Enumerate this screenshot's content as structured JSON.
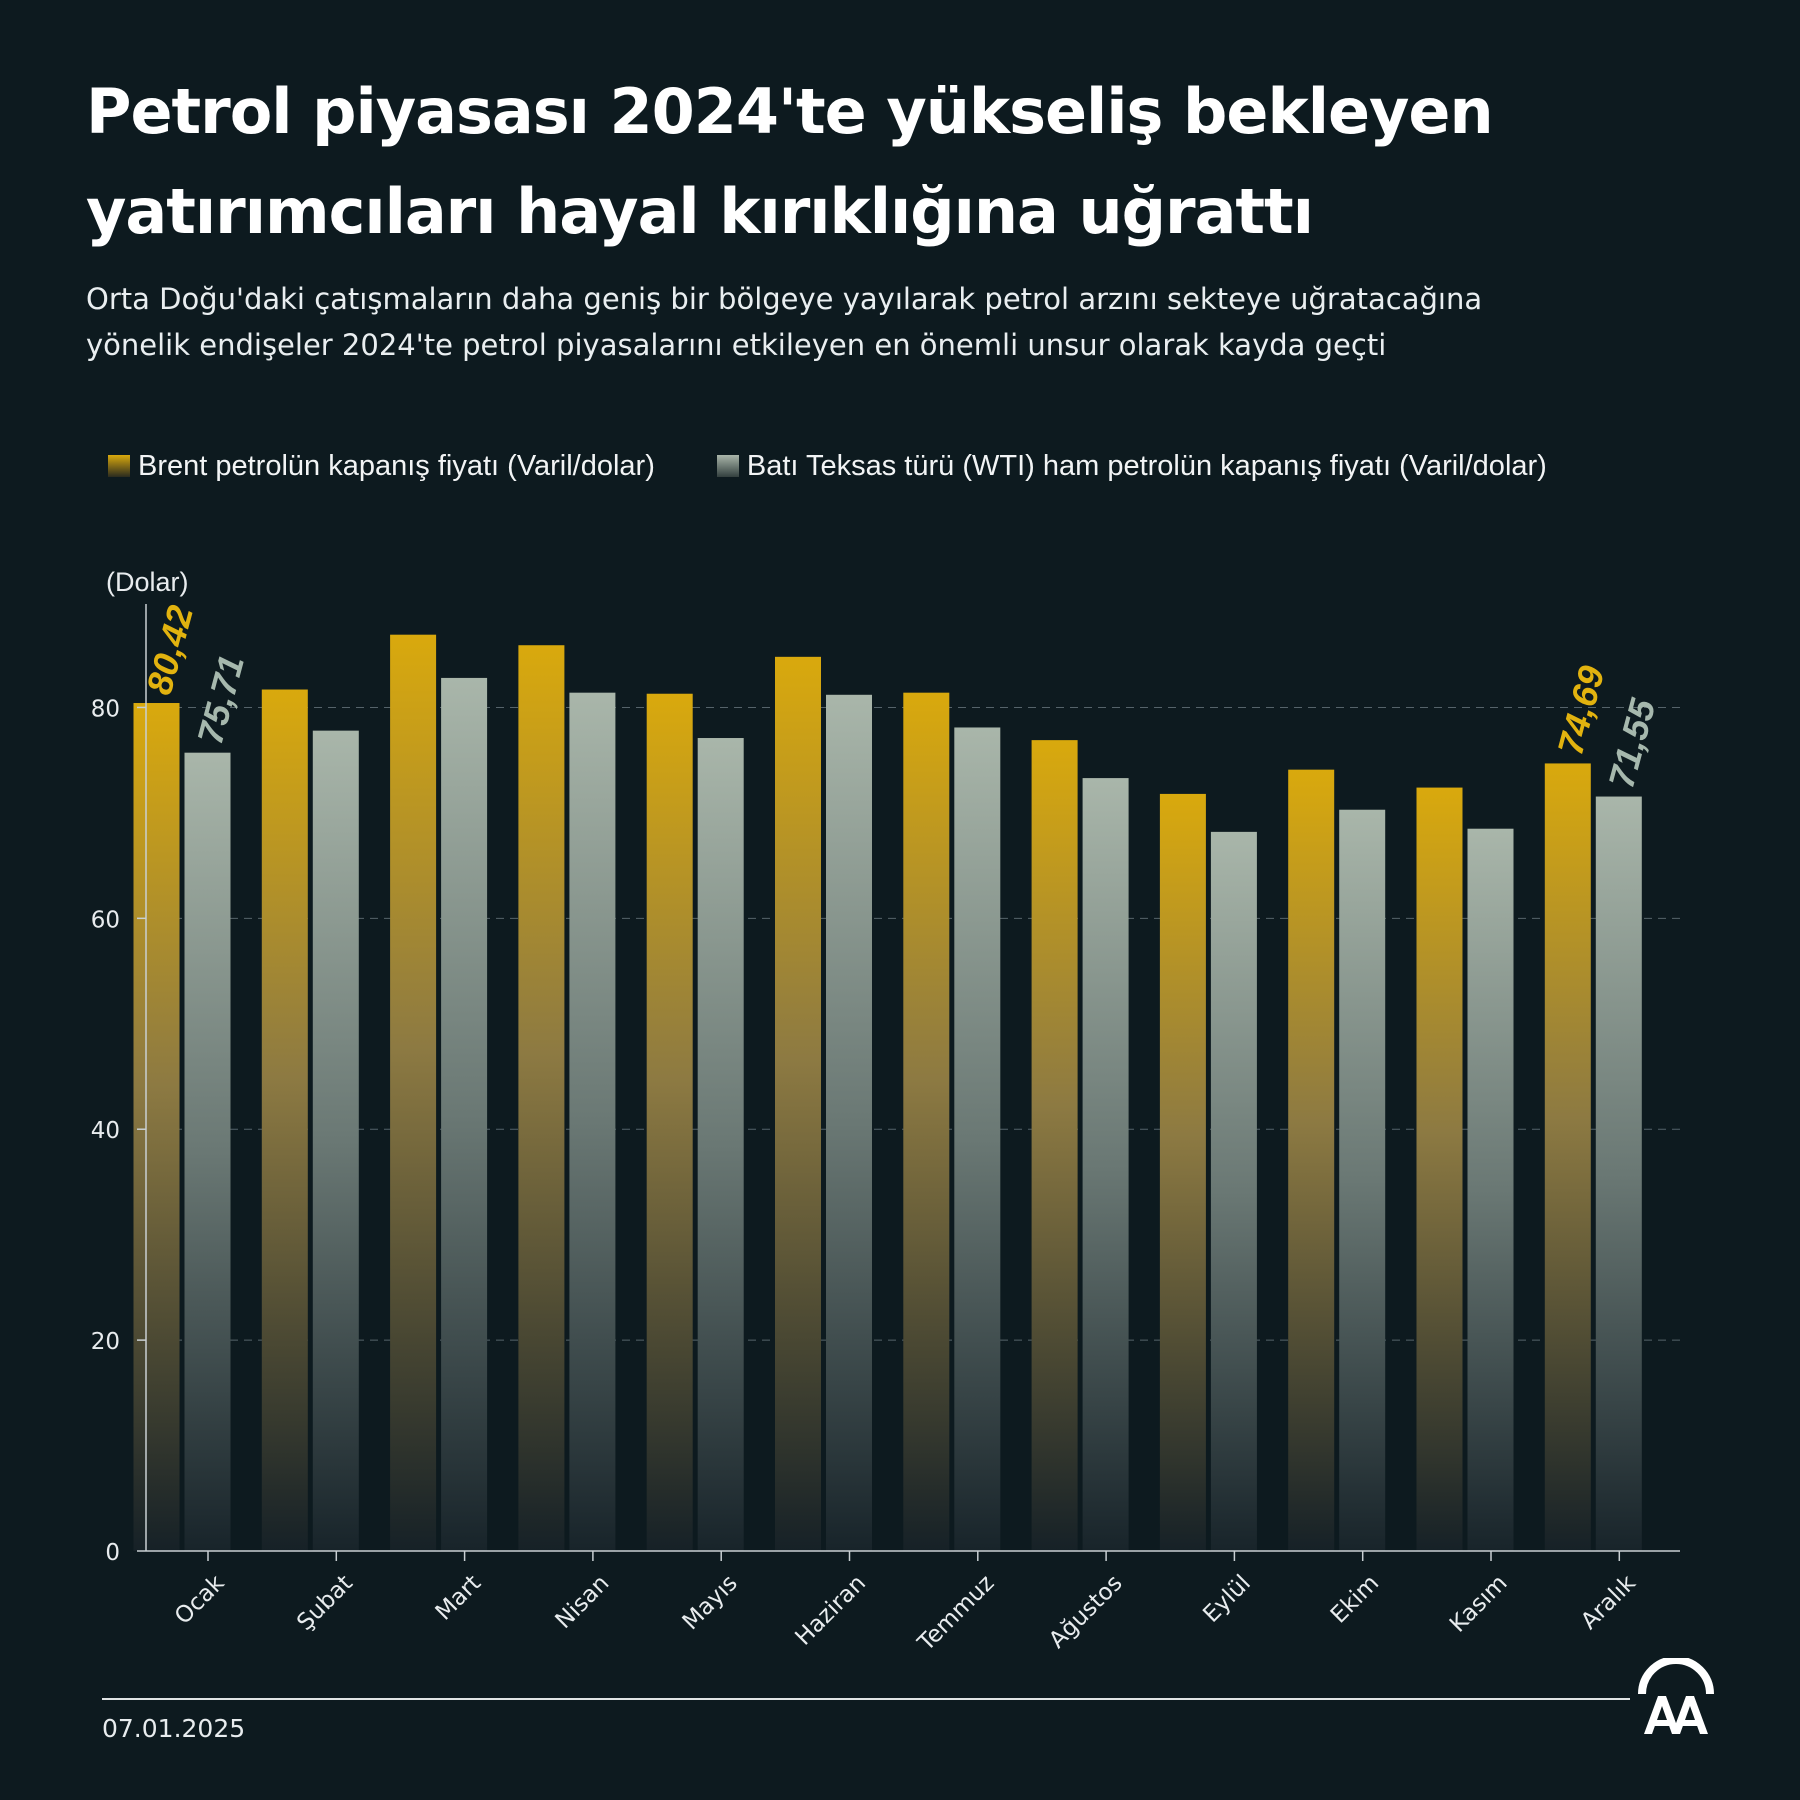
{
  "header": {
    "title_line1": "Petrol piyasası 2024'te yükseliş bekleyen",
    "title_line2": "yatırımcıları hayal kırıklığına uğrattı",
    "subtitle_line1": "Orta Doğu'daki çatışmaların daha geniş bir bölgeye yayılarak petrol arzını sekteye uğratacağına",
    "subtitle_line2": "yönelik endişeler 2024'te petrol piyasalarını etkileyen en önemli unsur olarak kayda geçti"
  },
  "legend": {
    "brent": "Brent petrolün kapanış fiyatı (Varil/dolar)",
    "wti": "Batı Teksas türü (WTI) ham petrolün kapanış fiyatı (Varil/dolar)"
  },
  "colors": {
    "background": "#0d1a1f",
    "brent": "#d9a90d",
    "brent_label": "#e2b30f",
    "wti": "#aab6aa",
    "wti_label": "#a6b8ad"
  },
  "chart_data": {
    "type": "bar",
    "ylabel": "(Dolar)",
    "ylim": [
      0,
      90
    ],
    "yticks": [
      0,
      20,
      40,
      60,
      80
    ],
    "grid": true,
    "legend_position": "top-left",
    "categories": [
      "Ocak",
      "Şubat",
      "Mart",
      "Nisan",
      "Mayıs",
      "Haziran",
      "Temmuz",
      "Ağustos",
      "Eylül",
      "Ekim",
      "Kasım",
      "Aralık"
    ],
    "series": [
      {
        "name": "Brent petrolün kapanış fiyatı (Varil/dolar)",
        "values": [
          80.42,
          81.7,
          86.9,
          85.9,
          81.3,
          84.8,
          81.4,
          76.9,
          71.8,
          74.1,
          72.4,
          74.69
        ]
      },
      {
        "name": "Batı Teksas türü (WTI) ham petrolün kapanış fiyatı (Varil/dolar)",
        "values": [
          75.71,
          77.8,
          82.8,
          81.4,
          77.1,
          81.2,
          78.1,
          73.3,
          68.2,
          70.3,
          68.5,
          71.55
        ]
      }
    ],
    "value_labels": [
      {
        "series": 0,
        "index": 0,
        "text": "80,42"
      },
      {
        "series": 1,
        "index": 0,
        "text": "75,71"
      },
      {
        "series": 0,
        "index": 11,
        "text": "74,69"
      },
      {
        "series": 1,
        "index": 11,
        "text": "71,55"
      }
    ]
  },
  "footer": {
    "date": "07.01.2025",
    "logo_text": "AA"
  }
}
